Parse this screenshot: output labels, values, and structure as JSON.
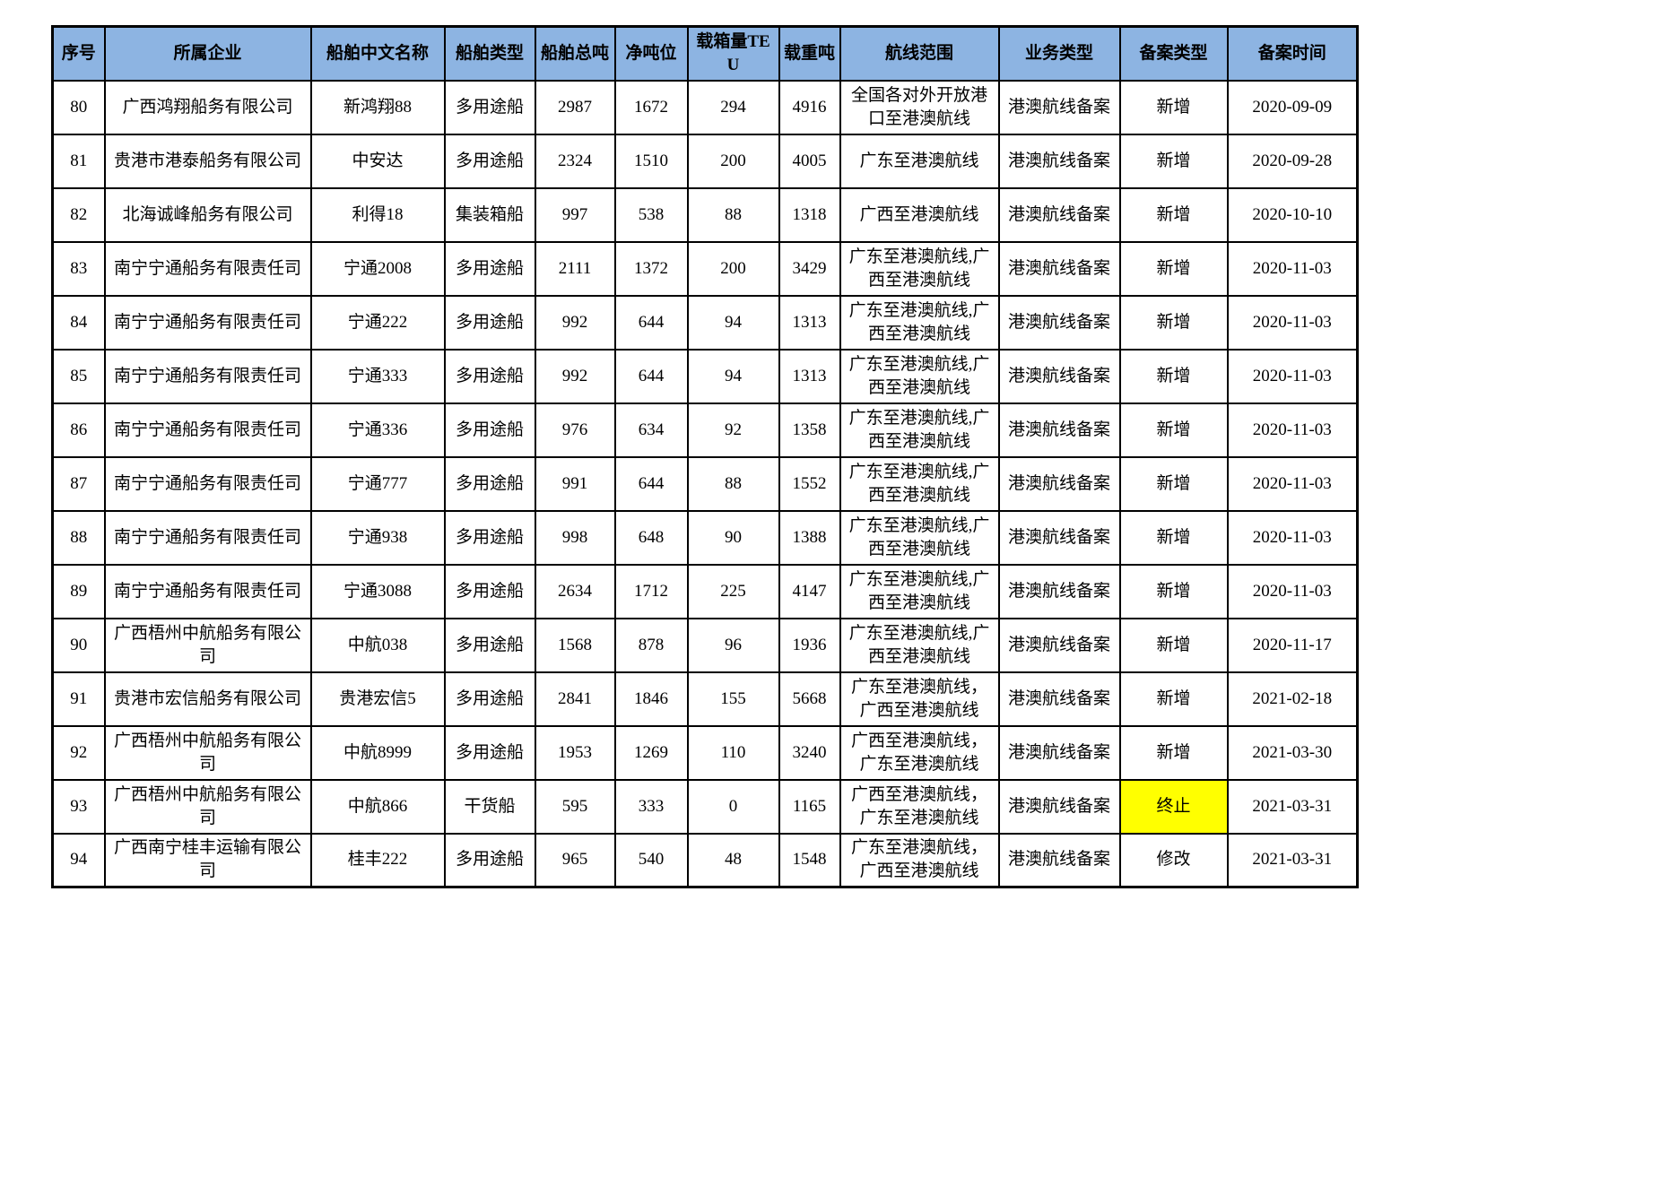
{
  "colors": {
    "header_bg": "#8DB4E2",
    "border": "#000000",
    "highlight": "#FFFF00"
  },
  "table": {
    "columns": [
      "序号",
      "所属企业",
      "船舶中文名称",
      "船舶类型",
      "船舶总吨",
      "净吨位",
      "载箱量TEU",
      "载重吨",
      "航线范围",
      "业务类型",
      "备案类型",
      "备案时间"
    ],
    "rows": [
      [
        "80",
        "广西鸿翔船务有限公司",
        "新鸿翔88",
        "多用途船",
        "2987",
        "1672",
        "294",
        "4916",
        "全国各对外开放港口至港澳航线",
        "港澳航线备案",
        "新增",
        "2020-09-09"
      ],
      [
        "81",
        "贵港市港泰船务有限公司",
        "中安达",
        "多用途船",
        "2324",
        "1510",
        "200",
        "4005",
        "广东至港澳航线",
        "港澳航线备案",
        "新增",
        "2020-09-28"
      ],
      [
        "82",
        "北海诚峰船务有限公司",
        "利得18",
        "集装箱船",
        "997",
        "538",
        "88",
        "1318",
        "广西至港澳航线",
        "港澳航线备案",
        "新增",
        "2020-10-10"
      ],
      [
        "83",
        "南宁宁通船务有限责任司",
        "宁通2008",
        "多用途船",
        "2111",
        "1372",
        "200",
        "3429",
        "广东至港澳航线,广西至港澳航线",
        "港澳航线备案",
        "新增",
        "2020-11-03"
      ],
      [
        "84",
        "南宁宁通船务有限责任司",
        "宁通222",
        "多用途船",
        "992",
        "644",
        "94",
        "1313",
        "广东至港澳航线,广西至港澳航线",
        "港澳航线备案",
        "新增",
        "2020-11-03"
      ],
      [
        "85",
        "南宁宁通船务有限责任司",
        "宁通333",
        "多用途船",
        "992",
        "644",
        "94",
        "1313",
        "广东至港澳航线,广西至港澳航线",
        "港澳航线备案",
        "新增",
        "2020-11-03"
      ],
      [
        "86",
        "南宁宁通船务有限责任司",
        "宁通336",
        "多用途船",
        "976",
        "634",
        "92",
        "1358",
        "广东至港澳航线,广西至港澳航线",
        "港澳航线备案",
        "新增",
        "2020-11-03"
      ],
      [
        "87",
        "南宁宁通船务有限责任司",
        "宁通777",
        "多用途船",
        "991",
        "644",
        "88",
        "1552",
        "广东至港澳航线,广西至港澳航线",
        "港澳航线备案",
        "新增",
        "2020-11-03"
      ],
      [
        "88",
        "南宁宁通船务有限责任司",
        "宁通938",
        "多用途船",
        "998",
        "648",
        "90",
        "1388",
        "广东至港澳航线,广西至港澳航线",
        "港澳航线备案",
        "新增",
        "2020-11-03"
      ],
      [
        "89",
        "南宁宁通船务有限责任司",
        "宁通3088",
        "多用途船",
        "2634",
        "1712",
        "225",
        "4147",
        "广东至港澳航线,广西至港澳航线",
        "港澳航线备案",
        "新增",
        "2020-11-03"
      ],
      [
        "90",
        "广西梧州中航船务有限公司",
        "中航038",
        "多用途船",
        "1568",
        "878",
        "96",
        "1936",
        "广东至港澳航线,广西至港澳航线",
        "港澳航线备案",
        "新增",
        "2020-11-17"
      ],
      [
        "91",
        "贵港市宏信船务有限公司",
        "贵港宏信5",
        "多用途船",
        "2841",
        "1846",
        "155",
        "5668",
        "广东至港澳航线，广西至港澳航线",
        "港澳航线备案",
        "新增",
        "2021-02-18"
      ],
      [
        "92",
        "广西梧州中航船务有限公司",
        "中航8999",
        "多用途船",
        "1953",
        "1269",
        "110",
        "3240",
        "广西至港澳航线，广东至港澳航线",
        "港澳航线备案",
        "新增",
        "2021-03-30"
      ],
      [
        "93",
        "广西梧州中航船务有限公司",
        "中航866",
        "干货船",
        "595",
        "333",
        "0",
        "1165",
        "广西至港澳航线，广东至港澳航线",
        "港澳航线备案",
        "终止",
        "2021-03-31"
      ],
      [
        "94",
        "广西南宁桂丰运输有限公司",
        "桂丰222",
        "多用途船",
        "965",
        "540",
        "48",
        "1548",
        "广东至港澳航线，广西至港澳航线",
        "港澳航线备案",
        "修改",
        "2021-03-31"
      ]
    ],
    "highlight_cells": [
      {
        "row_index": 13,
        "col_index": 10
      }
    ]
  }
}
